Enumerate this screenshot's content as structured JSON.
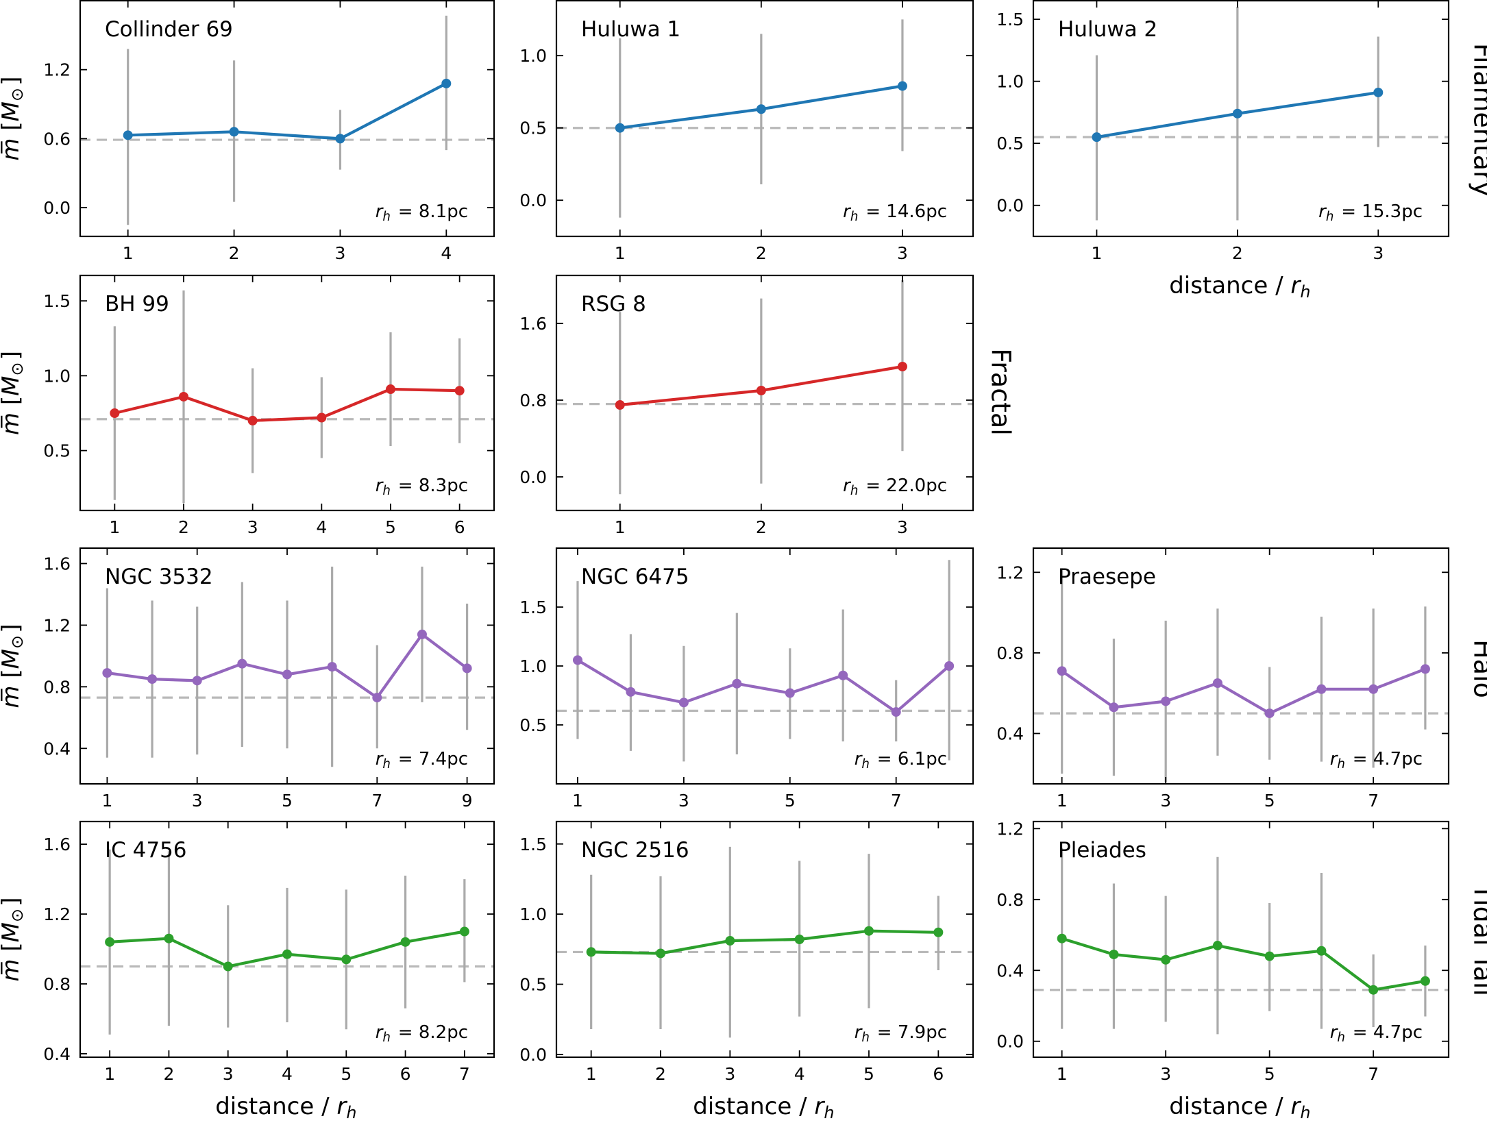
{
  "chart_data": [
    {
      "type": "line",
      "title": "Collinder 69",
      "group": "Filamentary",
      "annotation": "$r_h = 8.1$pc",
      "x": [
        1,
        2,
        3,
        4
      ],
      "values": [
        0.63,
        0.66,
        0.6,
        1.08
      ],
      "err_low": [
        -0.15,
        0.05,
        0.33,
        0.5
      ],
      "err_high": [
        1.38,
        1.28,
        0.85,
        1.67
      ],
      "reference_y": 0.59,
      "xlim": [
        0.55,
        4.45
      ],
      "ylim": [
        -0.25,
        1.8
      ],
      "xticks": [
        1,
        2,
        3,
        4
      ],
      "yticks": [
        0.0,
        0.6,
        1.2
      ],
      "ylabel": "$\\overline{m}$ [$M_\\odot$]",
      "xlabel": ""
    },
    {
      "type": "line",
      "title": "Huluwa 1",
      "group": "Filamentary",
      "annotation": "$r_h = 14.6$pc",
      "x": [
        1,
        2,
        3
      ],
      "values": [
        0.5,
        0.63,
        0.79
      ],
      "err_low": [
        -0.12,
        0.11,
        0.34
      ],
      "err_high": [
        1.12,
        1.15,
        1.25
      ],
      "reference_y": 0.5,
      "xlim": [
        0.55,
        3.5
      ],
      "ylim": [
        -0.25,
        1.38
      ],
      "xticks": [
        1,
        2,
        3
      ],
      "yticks": [
        0.0,
        0.5,
        1.0
      ],
      "ylabel": "",
      "xlabel": ""
    },
    {
      "type": "line",
      "title": "Huluwa 2",
      "group": "Filamentary",
      "annotation": "$r_h = 15.3$pc",
      "x": [
        1,
        2,
        3
      ],
      "values": [
        0.55,
        0.74,
        0.91
      ],
      "err_low": [
        -0.12,
        -0.12,
        0.47
      ],
      "err_high": [
        1.21,
        1.6,
        1.36
      ],
      "reference_y": 0.55,
      "xlim": [
        0.55,
        3.5
      ],
      "ylim": [
        -0.25,
        1.65
      ],
      "xticks": [
        1,
        2,
        3
      ],
      "yticks": [
        0.0,
        0.5,
        1.0,
        1.5
      ],
      "ylabel": "",
      "xlabel": "distance / $r_h$"
    },
    {
      "type": "line",
      "title": "BH 99",
      "group": "Fractal",
      "annotation": "$r_h = 8.3$pc",
      "x": [
        1,
        2,
        3,
        4,
        5,
        6
      ],
      "values": [
        0.75,
        0.86,
        0.7,
        0.72,
        0.91,
        0.9
      ],
      "err_low": [
        0.17,
        0.15,
        0.35,
        0.45,
        0.53,
        0.55
      ],
      "err_high": [
        1.33,
        1.57,
        1.05,
        0.99,
        1.29,
        1.25
      ],
      "reference_y": 0.71,
      "xlim": [
        0.5,
        6.5
      ],
      "ylim": [
        0.1,
        1.67
      ],
      "xticks": [
        1,
        2,
        3,
        4,
        5,
        6
      ],
      "yticks": [
        0.5,
        1.0,
        1.5
      ],
      "ylabel": "$\\overline{m}$ [$M_\\odot$]",
      "xlabel": ""
    },
    {
      "type": "line",
      "title": "RSG 8",
      "group": "Fractal",
      "annotation": "$r_h = 22.0$pc",
      "x": [
        1,
        2,
        3
      ],
      "values": [
        0.75,
        0.9,
        1.15
      ],
      "err_low": [
        -0.18,
        -0.07,
        0.27
      ],
      "err_high": [
        1.72,
        1.86,
        2.05
      ],
      "reference_y": 0.76,
      "xlim": [
        0.55,
        3.5
      ],
      "ylim": [
        -0.35,
        2.1
      ],
      "xticks": [
        1,
        2,
        3
      ],
      "yticks": [
        0.0,
        0.8,
        1.6
      ],
      "ylabel": "",
      "xlabel": ""
    },
    {
      "type": "line",
      "title": "NGC 3532",
      "group": "Halo",
      "annotation": "$r_h = 7.4$pc",
      "x": [
        1,
        2,
        3,
        4,
        5,
        6,
        7,
        8,
        9
      ],
      "values": [
        0.89,
        0.85,
        0.84,
        0.95,
        0.88,
        0.93,
        0.73,
        1.14,
        0.92
      ],
      "err_low": [
        0.34,
        0.34,
        0.36,
        0.41,
        0.4,
        0.28,
        0.4,
        0.7,
        0.52
      ],
      "err_high": [
        1.44,
        1.36,
        1.32,
        1.48,
        1.36,
        1.58,
        1.07,
        1.58,
        1.34
      ],
      "reference_y": 0.73,
      "xlim": [
        0.4,
        9.6
      ],
      "ylim": [
        0.17,
        1.7
      ],
      "xticks": [
        1,
        3,
        5,
        7,
        9
      ],
      "yticks": [
        0.4,
        0.8,
        1.2,
        1.6
      ],
      "ylabel": "$\\overline{m}$ [$M_\\odot$]",
      "xlabel": ""
    },
    {
      "type": "line",
      "title": "NGC 6475",
      "group": "Halo",
      "annotation": "$r_h = 6.1$pc",
      "x": [
        1,
        2,
        3,
        4,
        5,
        6,
        7,
        8
      ],
      "values": [
        1.05,
        0.78,
        0.69,
        0.85,
        0.77,
        0.92,
        0.61,
        1.0
      ],
      "err_low": [
        0.38,
        0.28,
        0.19,
        0.25,
        0.38,
        0.36,
        0.36,
        0.2
      ],
      "err_high": [
        1.72,
        1.27,
        1.17,
        1.45,
        1.15,
        1.48,
        0.88,
        1.9
      ],
      "reference_y": 0.62,
      "xlim": [
        0.6,
        8.45
      ],
      "ylim": [
        0.0,
        2.0
      ],
      "xticks": [
        1,
        3,
        5,
        7
      ],
      "yticks": [
        0.5,
        1.0,
        1.5
      ],
      "ylabel": "",
      "xlabel": ""
    },
    {
      "type": "line",
      "title": "Praesepe",
      "group": "Halo",
      "annotation": "$r_h = 4.7$pc",
      "x": [
        1,
        2,
        3,
        4,
        5,
        6,
        7,
        8
      ],
      "values": [
        0.71,
        0.53,
        0.56,
        0.65,
        0.5,
        0.62,
        0.62,
        0.72
      ],
      "err_low": [
        0.2,
        0.19,
        0.16,
        0.29,
        0.27,
        0.26,
        0.23,
        0.42
      ],
      "err_high": [
        1.22,
        0.87,
        0.96,
        1.02,
        0.73,
        0.98,
        1.02,
        1.03
      ],
      "reference_y": 0.5,
      "xlim": [
        0.45,
        8.45
      ],
      "ylim": [
        0.15,
        1.32
      ],
      "xticks": [
        1,
        3,
        5,
        7
      ],
      "yticks": [
        0.4,
        0.8,
        1.2
      ],
      "ylabel": "",
      "xlabel": ""
    },
    {
      "type": "line",
      "title": "IC 4756",
      "group": "Tidal Tail",
      "annotation": "$r_h = 8.2$pc",
      "x": [
        1,
        2,
        3,
        4,
        5,
        6,
        7
      ],
      "values": [
        1.04,
        1.06,
        0.9,
        0.97,
        0.94,
        1.04,
        1.1
      ],
      "err_low": [
        0.51,
        0.56,
        0.55,
        0.58,
        0.54,
        0.66,
        0.81
      ],
      "err_high": [
        1.57,
        1.56,
        1.25,
        1.35,
        1.34,
        1.42,
        1.4
      ],
      "reference_y": 0.9,
      "xlim": [
        0.5,
        7.5
      ],
      "ylim": [
        0.38,
        1.73
      ],
      "xticks": [
        1,
        2,
        3,
        4,
        5,
        6,
        7
      ],
      "yticks": [
        0.4,
        0.8,
        1.2,
        1.6
      ],
      "ylabel": "$\\overline{m}$ [$M_\\odot$]",
      "xlabel": "distance / $r_h$"
    },
    {
      "type": "line",
      "title": "NGC 2516",
      "group": "Tidal Tail",
      "annotation": "$r_h = 7.9$pc",
      "x": [
        1,
        2,
        3,
        4,
        5,
        6
      ],
      "values": [
        0.73,
        0.72,
        0.81,
        0.82,
        0.88,
        0.87
      ],
      "err_low": [
        0.18,
        0.18,
        0.12,
        0.27,
        0.33,
        0.6
      ],
      "err_high": [
        1.28,
        1.27,
        1.48,
        1.38,
        1.43,
        1.13
      ],
      "reference_y": 0.73,
      "xlim": [
        0.5,
        6.5
      ],
      "ylim": [
        -0.02,
        1.66
      ],
      "xticks": [
        1,
        2,
        3,
        4,
        5,
        6
      ],
      "yticks": [
        0.0,
        0.5,
        1.0,
        1.5
      ],
      "ylabel": "",
      "xlabel": "distance / $r_h$"
    },
    {
      "type": "line",
      "title": "Pleiades",
      "group": "Tidal Tail",
      "annotation": "$r_h = 4.7$pc",
      "x": [
        1,
        2,
        3,
        4,
        5,
        6,
        7,
        8
      ],
      "values": [
        0.58,
        0.49,
        0.46,
        0.54,
        0.48,
        0.51,
        0.29,
        0.34
      ],
      "err_low": [
        0.07,
        0.07,
        0.11,
        0.04,
        0.17,
        0.07,
        0.08,
        0.14
      ],
      "err_high": [
        1.09,
        0.89,
        0.82,
        1.04,
        0.78,
        0.95,
        0.49,
        0.54
      ],
      "reference_y": 0.29,
      "xlim": [
        0.45,
        8.45
      ],
      "ylim": [
        -0.09,
        1.24
      ],
      "xticks": [
        1,
        3,
        5,
        7
      ],
      "yticks": [
        0.0,
        0.4,
        0.8,
        1.2
      ],
      "ylabel": "",
      "xlabel": "distance / $r_h$"
    }
  ],
  "groups": [
    {
      "label": "Filamentary",
      "color": "#1f77b4"
    },
    {
      "label": "Fractal",
      "color": "#d62728"
    },
    {
      "label": "Halo",
      "color": "#9467bd"
    },
    {
      "label": "Tidal Tail",
      "color": "#2ca02c"
    }
  ]
}
